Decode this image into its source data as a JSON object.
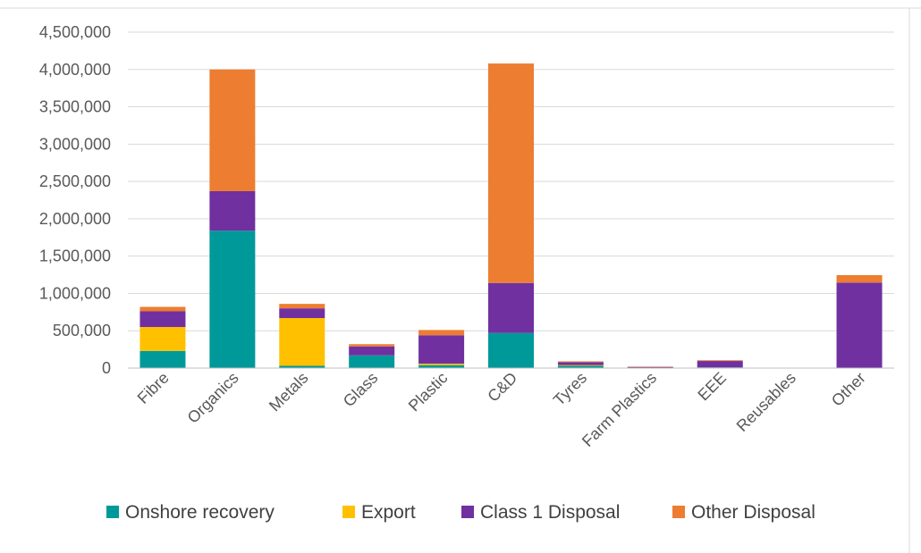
{
  "chart_data": {
    "type": "bar",
    "stacked": true,
    "title": "",
    "xlabel": "",
    "ylabel": "",
    "ylim": [
      0,
      4500000
    ],
    "y_ticks": [
      0,
      500000,
      1000000,
      1500000,
      2000000,
      2500000,
      3000000,
      3500000,
      4000000,
      4500000
    ],
    "y_tick_labels": [
      "0",
      "500,000",
      "1,000,000",
      "1,500,000",
      "2,000,000",
      "2,500,000",
      "3,000,000",
      "3,500,000",
      "4,000,000",
      "4,500,000"
    ],
    "grid": true,
    "legend_position": "bottom",
    "categories": [
      "Fibre",
      "Organics",
      "Metals",
      "Glass",
      "Plastic",
      "C&D",
      "Tyres",
      "Farm Plastics",
      "EEE",
      "Reusables",
      "Other"
    ],
    "series": [
      {
        "name": "Onshore recovery",
        "color": "#009999",
        "values": [
          230000,
          1840000,
          30000,
          170000,
          40000,
          470000,
          30000,
          5000,
          10000,
          0,
          5000
        ]
      },
      {
        "name": "Export",
        "color": "#FFC000",
        "values": [
          320000,
          0,
          640000,
          0,
          20000,
          0,
          10000,
          0,
          0,
          0,
          0
        ]
      },
      {
        "name": "Class 1 Disposal",
        "color": "#7030A0",
        "values": [
          210000,
          530000,
          130000,
          120000,
          380000,
          670000,
          40000,
          10000,
          85000,
          0,
          1140000
        ]
      },
      {
        "name": "Other Disposal",
        "color": "#ED7D31",
        "values": [
          60000,
          1630000,
          60000,
          30000,
          70000,
          2940000,
          10000,
          5000,
          10000,
          0,
          100000
        ]
      }
    ]
  }
}
